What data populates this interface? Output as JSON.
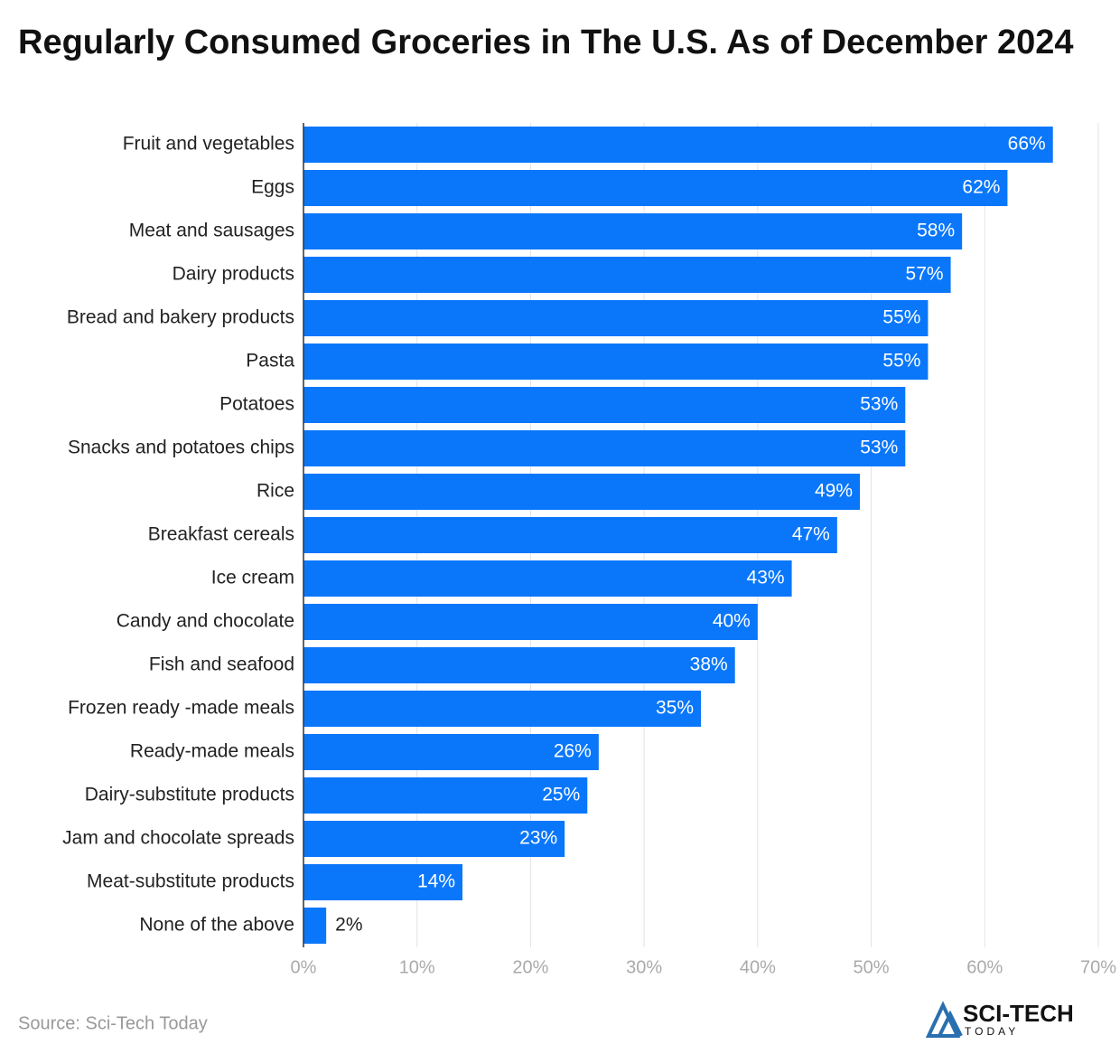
{
  "chart_data": {
    "type": "bar",
    "orientation": "horizontal",
    "title": "Regularly Consumed Groceries in The U.S. As of December 2024",
    "categories": [
      "Fruit and vegetables",
      "Eggs",
      "Meat and sausages",
      "Dairy products",
      "Bread and bakery products",
      "Pasta",
      "Potatoes",
      "Snacks and potatoes chips",
      "Rice",
      "Breakfast cereals",
      "Ice cream",
      "Candy and chocolate",
      "Fish and seafood",
      "Frozen ready -made meals",
      "Ready-made meals",
      "Dairy-substitute products",
      "Jam and chocolate spreads",
      "Meat-substitute products",
      "None of the above"
    ],
    "values": [
      66,
      62,
      58,
      57,
      55,
      55,
      53,
      53,
      49,
      47,
      43,
      40,
      38,
      35,
      26,
      25,
      23,
      14,
      2
    ],
    "value_labels": [
      "66%",
      "62%",
      "58%",
      "57%",
      "55%",
      "55%",
      "53%",
      "53%",
      "49%",
      "47%",
      "43%",
      "40%",
      "38%",
      "35%",
      "26%",
      "25%",
      "23%",
      "14%",
      "2%"
    ],
    "color": "#0a77fb",
    "xlim": [
      0,
      70
    ],
    "xticks": [
      {
        "value": 0,
        "label": "0%"
      },
      {
        "value": 10,
        "label": "10%"
      },
      {
        "value": 20,
        "label": "20%"
      },
      {
        "value": 30,
        "label": "30%"
      },
      {
        "value": 40,
        "label": "40%"
      },
      {
        "value": 50,
        "label": "50%"
      },
      {
        "value": 60,
        "label": "60%"
      },
      {
        "value": 70,
        "label": "70%"
      }
    ],
    "grid": true,
    "source": "Source: Sci-Tech Today",
    "logo": {
      "name": "SCI-TECH",
      "tagline": "TODAY"
    }
  }
}
